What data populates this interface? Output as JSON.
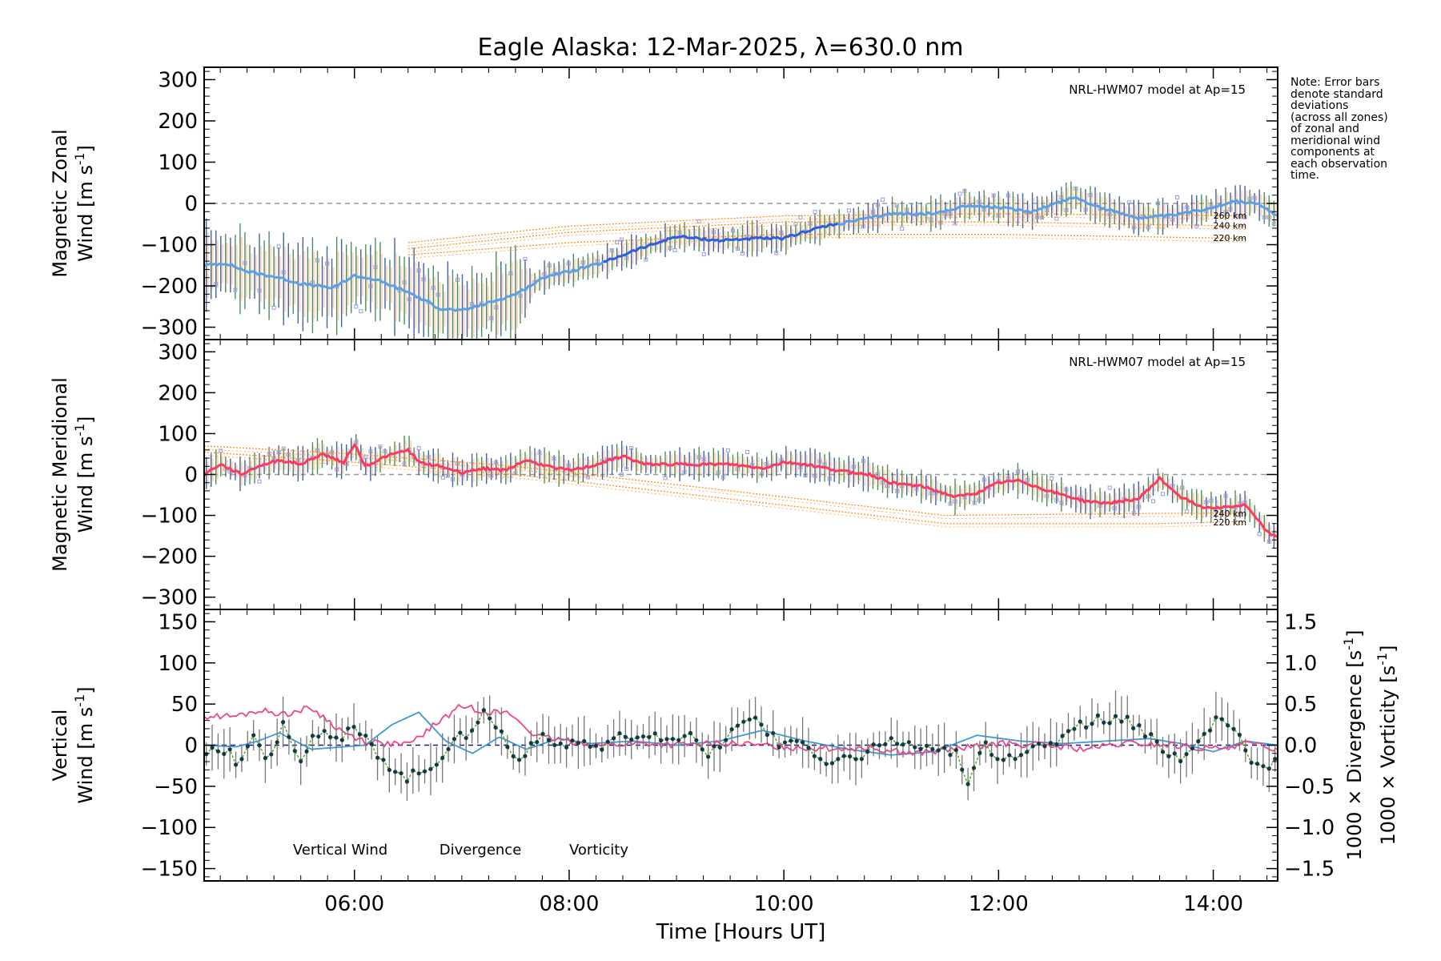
{
  "title": "Eagle Alaska: 12-Mar-2025, λ=630.0 nm",
  "note": "Note: Error bars\ndenote standard\ndeviations\n(across all zones)\nof zonal and\nmeridional wind\ncomponents at\neach observation\ntime.",
  "colors": {
    "zonal": "#2f5fe0",
    "zonal_light": "#5aa0e8",
    "meridional": "#ff3860",
    "vertical": "#59a52c",
    "divergence": "#3a9ad8",
    "vorticity": "#f0458a",
    "model": "#ff8c1a",
    "scatter": "#9b9bdc",
    "zero_line": "#999999"
  },
  "chart_data": [
    {
      "type": "line",
      "panel": "zonal",
      "ylabel_line1": "Magnetic Zonal",
      "ylabel_line2": "Wind [m s",
      "ylabel_sup": "-1",
      "ylabel_close": "]",
      "xlim": [
        4.6,
        14.6
      ],
      "ylim": [
        -330,
        330
      ],
      "yticks": [
        -300,
        -200,
        -100,
        0,
        100,
        200,
        300
      ],
      "ytick_labels": [
        "−300",
        "−200",
        "−100",
        "0",
        "100",
        "200",
        "300"
      ],
      "model_label": "NRL-HWM07 model at Ap=15",
      "model_altitudes": [
        "260 km",
        "240 km",
        "220 km"
      ],
      "series_anchors": {
        "x": [
          4.6,
          4.8,
          5.0,
          5.3,
          5.5,
          5.8,
          6.0,
          6.2,
          6.5,
          6.8,
          7.0,
          7.2,
          7.5,
          7.8,
          8.0,
          8.3,
          8.6,
          9.0,
          9.4,
          9.7,
          10.0,
          10.3,
          10.6,
          11.0,
          11.4,
          11.7,
          12.0,
          12.3,
          12.7,
          13.0,
          13.3,
          13.6,
          13.9,
          14.2,
          14.4,
          14.6
        ],
        "y": [
          -150,
          -145,
          -165,
          -180,
          -195,
          -205,
          -175,
          -185,
          -215,
          -255,
          -260,
          -245,
          -220,
          -175,
          -165,
          -145,
          -115,
          -80,
          -90,
          -85,
          -85,
          -60,
          -45,
          -25,
          -25,
          -5,
          -10,
          -20,
          15,
          -15,
          -35,
          -30,
          -15,
          5,
          0,
          -30
        ]
      },
      "model_anchors": {
        "x": [
          6.5,
          8.0,
          10.0,
          12.0,
          14.3
        ],
        "y260": [
          -95,
          -55,
          -30,
          -25,
          -30
        ],
        "y240": [
          -110,
          -70,
          -45,
          -45,
          -55
        ],
        "y220": [
          -125,
          -95,
          -75,
          -75,
          -85
        ]
      }
    },
    {
      "type": "line",
      "panel": "meridional",
      "ylabel_line1": "Magnetic Meridional",
      "ylabel_line2": "Wind [m s",
      "ylabel_sup": "-1",
      "ylabel_close": "]",
      "xlim": [
        4.6,
        14.6
      ],
      "ylim": [
        -330,
        330
      ],
      "yticks": [
        -300,
        -200,
        -100,
        0,
        100,
        200,
        300
      ],
      "ytick_labels": [
        "−300",
        "−200",
        "−100",
        "0",
        "100",
        "200",
        "300"
      ],
      "model_label": "NRL-HWM07 model at Ap=15",
      "model_altitudes": [
        "240 km",
        "220 km"
      ],
      "series_anchors": {
        "x": [
          4.6,
          4.75,
          4.95,
          5.1,
          5.3,
          5.5,
          5.7,
          5.9,
          6.0,
          6.1,
          6.3,
          6.5,
          6.6,
          6.8,
          7.0,
          7.2,
          7.4,
          7.6,
          7.8,
          8.0,
          8.2,
          8.5,
          8.7,
          9.0,
          9.5,
          9.8,
          10.0,
          10.2,
          10.5,
          10.8,
          11.0,
          11.3,
          11.6,
          11.8,
          12.0,
          12.2,
          12.4,
          12.8,
          13.0,
          13.3,
          13.5,
          13.7,
          13.9,
          14.1,
          14.3,
          14.5,
          14.6
        ],
        "y": [
          0,
          25,
          0,
          20,
          35,
          25,
          50,
          30,
          75,
          20,
          45,
          60,
          30,
          20,
          5,
          15,
          10,
          35,
          20,
          10,
          20,
          45,
          25,
          25,
          25,
          15,
          30,
          25,
          10,
          0,
          -20,
          -30,
          -55,
          -45,
          -20,
          -15,
          -35,
          -65,
          -70,
          -60,
          -10,
          -55,
          -80,
          -80,
          -75,
          -140,
          -155
        ]
      },
      "model_anchors": {
        "x": [
          4.6,
          6.0,
          7.5,
          9.5,
          11.5,
          13.5,
          14.3
        ],
        "y240": [
          70,
          50,
          20,
          -40,
          -100,
          -95,
          -95
        ],
        "y220": [
          55,
          30,
          0,
          -60,
          -120,
          -120,
          -115
        ]
      }
    },
    {
      "type": "line",
      "panel": "vertical",
      "ylabel_line1": "Vertical",
      "ylabel_line2": "Wind [m s",
      "ylabel_sup": "-1",
      "ylabel_close": "]",
      "xlim": [
        4.6,
        14.6
      ],
      "ylim": [
        -165,
        165
      ],
      "yticks": [
        -150,
        -100,
        -50,
        0,
        50,
        100,
        150
      ],
      "ytick_labels": [
        "−150",
        "−100",
        "−50",
        "0",
        "50",
        "100",
        "150"
      ],
      "right_ylim": [
        -1.65,
        1.65
      ],
      "right_yticks": [
        -1.5,
        -1.0,
        -0.5,
        0.0,
        0.5,
        1.0,
        1.5
      ],
      "right_ytick_labels": [
        "−1.5",
        "−1.0",
        "−0.5",
        "0.0",
        "0.5",
        "1.0",
        "1.5"
      ],
      "right_ylabel_div": "1000 × Divergence [s",
      "right_ylabel_vort": "1000 × Vorticity [s",
      "right_ylabel_sup": "-1",
      "right_ylabel_close": "]",
      "legend": [
        "Vertical Wind",
        "Divergence",
        "Vorticity"
      ],
      "vertical_anchors": {
        "x": [
          4.6,
          4.75,
          4.9,
          5.05,
          5.2,
          5.35,
          5.5,
          5.7,
          5.85,
          6.0,
          6.15,
          6.3,
          6.45,
          6.6,
          6.75,
          6.9,
          7.05,
          7.2,
          7.35,
          7.5,
          7.7,
          7.9,
          8.1,
          8.3,
          8.5,
          8.7,
          8.9,
          9.1,
          9.3,
          9.5,
          9.75,
          9.95,
          10.15,
          10.35,
          10.55,
          10.75,
          10.95,
          11.2,
          11.4,
          11.6,
          11.7,
          11.85,
          12.05,
          12.25,
          12.45,
          12.7,
          12.9,
          13.1,
          13.3,
          13.5,
          13.7,
          13.9,
          14.05,
          14.2,
          14.4,
          14.6
        ],
        "y": [
          -10,
          0,
          -20,
          10,
          -15,
          30,
          -20,
          25,
          5,
          20,
          0,
          -20,
          -40,
          -35,
          -20,
          0,
          15,
          40,
          20,
          -20,
          10,
          0,
          5,
          -5,
          10,
          5,
          10,
          12,
          -15,
          15,
          35,
          0,
          10,
          -25,
          -20,
          -10,
          5,
          0,
          -10,
          -5,
          -55,
          0,
          -15,
          -5,
          -5,
          25,
          30,
          35,
          25,
          0,
          -20,
          10,
          35,
          20,
          -25,
          -20
        ]
      },
      "divergence_anchors": {
        "x": [
          4.6,
          4.9,
          5.1,
          5.3,
          5.6,
          5.9,
          6.1,
          6.35,
          6.6,
          6.85,
          7.1,
          7.35,
          7.6,
          7.9,
          8.2,
          8.6,
          9.0,
          9.4,
          9.8,
          10.2,
          10.6,
          11.0,
          11.4,
          11.8,
          12.2,
          12.6,
          13.0,
          13.4,
          13.7,
          14.0,
          14.3,
          14.6
        ],
        "y": [
          0.0,
          -0.02,
          0.05,
          0.15,
          -0.05,
          -0.02,
          0.0,
          0.25,
          0.4,
          0.05,
          -0.1,
          0.1,
          -0.05,
          0.08,
          0.02,
          0.05,
          0.0,
          0.05,
          0.18,
          0.05,
          -0.05,
          -0.12,
          -0.08,
          0.12,
          0.05,
          0.02,
          0.05,
          0.08,
          0.02,
          -0.08,
          0.05,
          0.0
        ]
      },
      "vorticity_anchors": {
        "x": [
          4.6,
          4.9,
          5.1,
          5.35,
          5.6,
          5.9,
          6.1,
          6.3,
          6.5,
          6.8,
          7.0,
          7.2,
          7.45,
          7.7,
          8.0,
          8.3,
          8.7,
          9.0,
          9.5,
          10.0,
          10.4,
          10.8,
          11.2,
          11.6,
          12.0,
          12.4,
          12.8,
          13.2,
          13.6,
          14.0,
          14.3,
          14.6
        ],
        "y": [
          0.35,
          0.35,
          0.42,
          0.38,
          0.45,
          0.15,
          0.05,
          0.02,
          0.0,
          0.3,
          0.48,
          0.42,
          0.38,
          0.1,
          0.05,
          0.0,
          0.02,
          0.0,
          0.02,
          -0.02,
          -0.04,
          -0.03,
          -0.1,
          -0.05,
          0.02,
          0.0,
          -0.05,
          0.02,
          0.0,
          -0.05,
          0.02,
          -0.05
        ]
      }
    }
  ],
  "xaxis": {
    "label": "Time [Hours UT]",
    "ticks": [
      6,
      8,
      10,
      12,
      14
    ],
    "tick_labels": [
      "06:00",
      "08:00",
      "10:00",
      "12:00",
      "14:00"
    ]
  }
}
